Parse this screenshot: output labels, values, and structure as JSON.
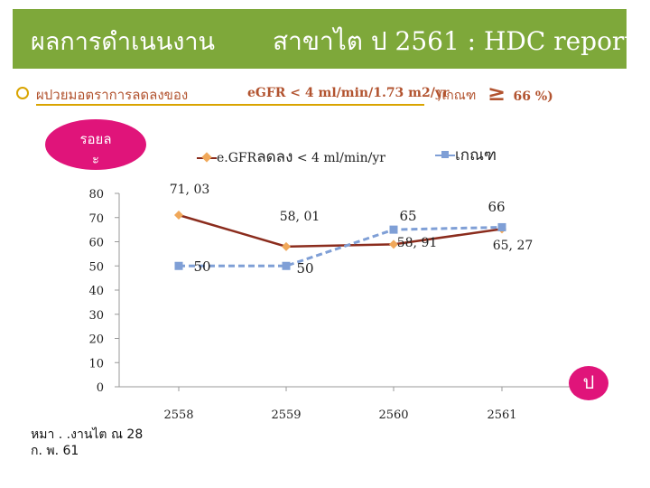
{
  "header": {
    "title_thai": "ผลการดำเนนงาน",
    "title_right": "สาขาไต ป   2561  : HDC report"
  },
  "subtitle": {
    "thai": "ผปวยมอตราการลดลงของ",
    "gfr": "eGFR < 4 ml/min/1.73 m2/yr",
    "criteria": ")เกณฑ",
    "percent_symbol": "≥",
    "percent_value": "66 %)"
  },
  "badge": {
    "line1": "รอยล",
    "line2": "ะ"
  },
  "right_badge": "ป",
  "footnote": {
    "line1": "หมา   . .งานไต ณ 28",
    "line2": "ก. พ. 61"
  },
  "colors": {
    "series1": "#8b2c1d",
    "series2": "#7f9fd6",
    "header": "#7ea83a",
    "badge": "#e0147a",
    "marker1": "#f0a85a"
  },
  "chart_data": {
    "type": "line",
    "categories": [
      "2558",
      "2559",
      "2560",
      "2561"
    ],
    "ylim": [
      0,
      80
    ],
    "yticks": [
      "0",
      "10",
      "20",
      "30",
      "40",
      "50",
      "60",
      "70",
      "80"
    ],
    "grid": false,
    "legend_position": "top",
    "series": [
      {
        "name_prefix": "e.GFR",
        "name_thai": "ลดลง",
        "name_suffix": "< 4 ml/min/yr",
        "values": [
          71.03,
          58.01,
          58.91,
          65.27
        ],
        "labels": [
          "71, 03",
          "58, 01",
          "58, 91",
          "65, 27"
        ]
      },
      {
        "name": "เกณฑ",
        "values": [
          50,
          50,
          65,
          66
        ],
        "labels": [
          "50",
          "50",
          "65",
          "66"
        ]
      }
    ]
  }
}
